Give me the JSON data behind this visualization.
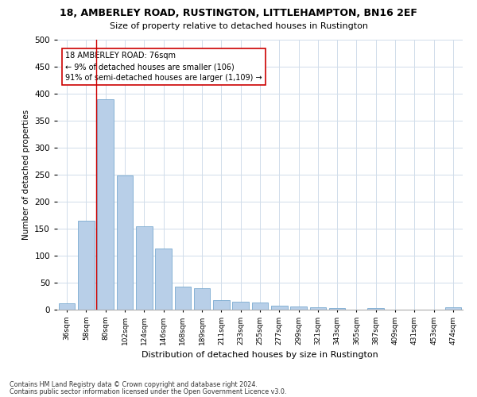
{
  "title1": "18, AMBERLEY ROAD, RUSTINGTON, LITTLEHAMPTON, BN16 2EF",
  "title2": "Size of property relative to detached houses in Rustington",
  "xlabel": "Distribution of detached houses by size in Rustington",
  "ylabel": "Number of detached properties",
  "categories": [
    "36sqm",
    "58sqm",
    "80sqm",
    "102sqm",
    "124sqm",
    "146sqm",
    "168sqm",
    "189sqm",
    "211sqm",
    "233sqm",
    "255sqm",
    "277sqm",
    "299sqm",
    "321sqm",
    "343sqm",
    "365sqm",
    "387sqm",
    "409sqm",
    "431sqm",
    "453sqm",
    "474sqm"
  ],
  "values": [
    12,
    165,
    390,
    248,
    155,
    113,
    42,
    40,
    18,
    15,
    13,
    8,
    6,
    5,
    3,
    0,
    3,
    0,
    0,
    0,
    4
  ],
  "bar_color": "#b8cfe8",
  "bar_edge_color": "#7aaad0",
  "vline_x": 1.5,
  "vline_color": "#cc0000",
  "annotation_line1": "18 AMBERLEY ROAD: 76sqm",
  "annotation_line2": "← 9% of detached houses are smaller (106)",
  "annotation_line3": "91% of semi-detached houses are larger (1,109) →",
  "annotation_box_color": "#ffffff",
  "annotation_box_edge_color": "#cc0000",
  "ylim": [
    0,
    500
  ],
  "yticks": [
    0,
    50,
    100,
    150,
    200,
    250,
    300,
    350,
    400,
    450,
    500
  ],
  "footnote1": "Contains HM Land Registry data © Crown copyright and database right 2024.",
  "footnote2": "Contains public sector information licensed under the Open Government Licence v3.0.",
  "bg_color": "#ffffff",
  "grid_color": "#d0dcea"
}
